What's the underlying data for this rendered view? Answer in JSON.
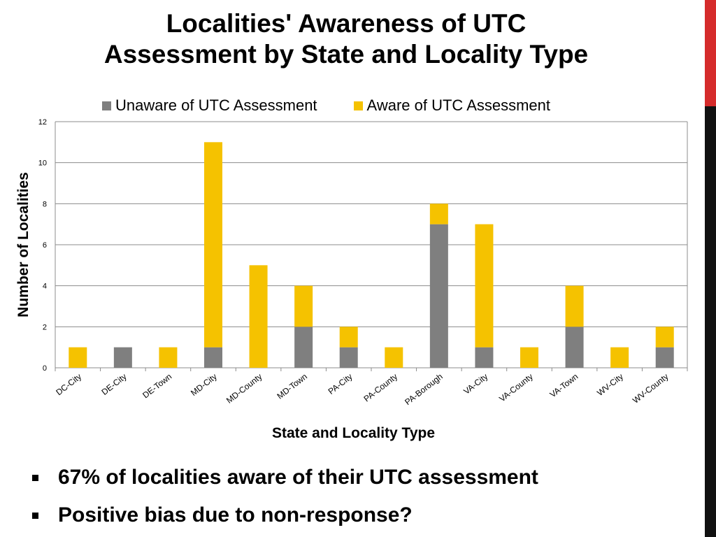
{
  "slide": {
    "title_line1": "Localities' Awareness of UTC",
    "title_line2": "Assessment by State and Locality Type",
    "bullets": [
      "67% of localities aware of their UTC assessment",
      "Positive bias due to non-response?"
    ]
  },
  "colors": {
    "unaware": "#7f7f7f",
    "aware": "#f5c200",
    "gridline": "#8c8c8c",
    "accent_red": "#d52b2b",
    "accent_black": "#111111"
  },
  "chart_data": {
    "type": "bar",
    "stacked": true,
    "xlabel": "State and Locality Type",
    "ylabel": "Number of Localities",
    "ylim": [
      0,
      12
    ],
    "yticks": [
      0,
      2,
      4,
      6,
      8,
      10,
      12
    ],
    "grid": true,
    "legend_position": "top",
    "categories": [
      "DC-City",
      "DE-City",
      "DE-Town",
      "MD-City",
      "MD-County",
      "MD-Town",
      "PA-City",
      "PA-County",
      "PA-Borough",
      "VA-City",
      "VA-County",
      "VA-Town",
      "WV-City",
      "WV-County"
    ],
    "series": [
      {
        "name": "Unaware of UTC Assessment",
        "values": [
          0,
          1,
          0,
          1,
          0,
          2,
          1,
          0,
          7,
          1,
          0,
          2,
          0,
          1
        ]
      },
      {
        "name": "Aware of UTC Assessment",
        "values": [
          1,
          0,
          1,
          10,
          5,
          2,
          1,
          1,
          1,
          6,
          1,
          2,
          1,
          1
        ]
      }
    ]
  }
}
